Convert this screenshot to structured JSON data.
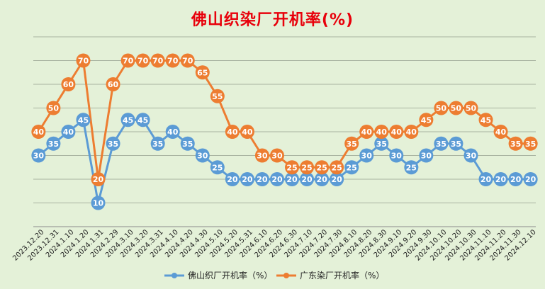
{
  "chart_data": {
    "type": "line",
    "title": "佛山织染厂开机率(%)",
    "ylim": [
      0,
      80
    ],
    "grid": true,
    "legend_position": "bottom",
    "categories": [
      "2023.12.20",
      "2023.12.31",
      "2024.1.10",
      "2024.1.20",
      "2024.1.31",
      "2024.2.29",
      "2024.3.10",
      "2024.3.20",
      "2024.3.31",
      "2024.4.10",
      "2024.4.20",
      "2024.4.30",
      "2024.5.10",
      "2024.5.20",
      "2024.5.31",
      "2024.6.10",
      "2024.6.20",
      "2024.6.30",
      "2024.7.10",
      "2024.7.20",
      "2024.7.30",
      "2024.8.10",
      "2024.8.20",
      "2024.8.30",
      "2024.9.10",
      "2024.9.20",
      "2024.9.30",
      "2024.10.10",
      "2024.10.20",
      "2024.10.30",
      "2024.11.10",
      "2024.11.20",
      "2024.11.30",
      "2024.12.10"
    ],
    "series": [
      {
        "name": "佛山织厂开机率（%）",
        "color": "#5b9bd5",
        "values": [
          30,
          35,
          40,
          45,
          10,
          35,
          45,
          45,
          35,
          40,
          35,
          30,
          25,
          20,
          20,
          20,
          20,
          20,
          20,
          20,
          20,
          25,
          30,
          35,
          30,
          25,
          30,
          35,
          35,
          30,
          20,
          20,
          20,
          20
        ]
      },
      {
        "name": "广东染厂开机率（%）",
        "color": "#ed7d31",
        "values": [
          40,
          50,
          60,
          70,
          20,
          60,
          70,
          70,
          70,
          70,
          70,
          65,
          55,
          40,
          40,
          30,
          30,
          25,
          25,
          25,
          25,
          35,
          40,
          40,
          40,
          40,
          45,
          50,
          50,
          50,
          45,
          40,
          35,
          35
        ]
      }
    ]
  }
}
